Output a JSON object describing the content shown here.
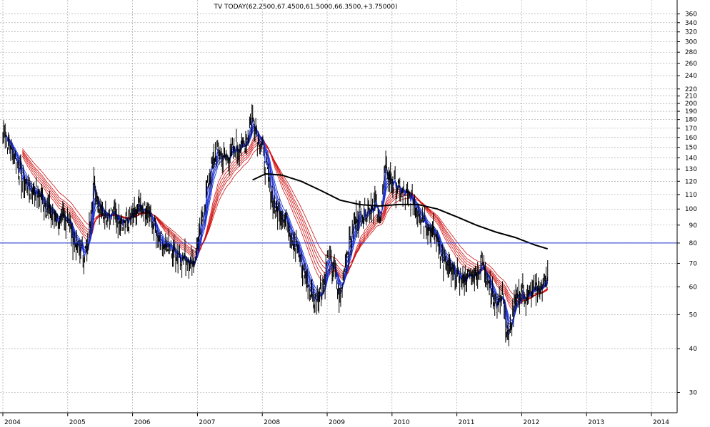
{
  "chart_data": {
    "type": "line",
    "title": "TV TODAY(62.2500,67.4500,61.5000,66.3500,+3.75000)",
    "y_scale": "log",
    "ylim": [
      27,
      380
    ],
    "xlim": [
      2004.0,
      2014.33
    ],
    "grid": true,
    "y_ticks": [
      30,
      40,
      50,
      60,
      70,
      80,
      90,
      100,
      110,
      120,
      130,
      140,
      150,
      160,
      170,
      180,
      190,
      200,
      210,
      220,
      240,
      260,
      280,
      300,
      320,
      340,
      360
    ],
    "x_ticks": [
      "2004",
      "2005",
      "2006",
      "2007",
      "2008",
      "2009",
      "2010",
      "2011",
      "2012",
      "2013",
      "2014"
    ],
    "horizontal_line": 80,
    "price": {
      "x": [
        2004.0,
        2004.03,
        2004.1,
        2004.2,
        2004.3,
        2004.4,
        2004.55,
        2004.7,
        2004.85,
        2005.0,
        2005.1,
        2005.2,
        2005.3,
        2005.4,
        2005.5,
        2005.6,
        2005.75,
        2005.9,
        2006.0,
        2006.1,
        2006.25,
        2006.4,
        2006.55,
        2006.7,
        2006.85,
        2006.95,
        2007.0,
        2007.1,
        2007.2,
        2007.3,
        2007.45,
        2007.6,
        2007.75,
        2007.85,
        2007.9,
        2008.0,
        2008.1,
        2008.2,
        2008.35,
        2008.5,
        2008.65,
        2008.8,
        2008.95,
        2009.0,
        2009.1,
        2009.2,
        2009.3,
        2009.45,
        2009.6,
        2009.75,
        2009.8,
        2009.9,
        2010.0,
        2010.1,
        2010.25,
        2010.4,
        2010.55,
        2010.7,
        2010.8,
        2010.95,
        2011.1,
        2011.25,
        2011.4,
        2011.5,
        2011.6,
        2011.7,
        2011.75,
        2011.8,
        2011.9,
        2012.0,
        2012.1,
        2012.2,
        2012.3,
        2012.4
      ],
      "values": [
        160,
        170,
        150,
        140,
        120,
        115,
        110,
        100,
        92,
        95,
        80,
        76,
        75,
        120,
        102,
        97,
        96,
        92,
        95,
        100,
        96,
        82,
        78,
        74,
        72,
        70,
        80,
        100,
        130,
        145,
        140,
        150,
        155,
        185,
        170,
        150,
        120,
        100,
        95,
        80,
        65,
        55,
        60,
        72,
        68,
        55,
        75,
        95,
        100,
        105,
        90,
        130,
        120,
        112,
        108,
        100,
        90,
        82,
        70,
        65,
        63,
        65,
        70,
        62,
        52,
        58,
        47,
        42,
        55,
        58,
        56,
        60,
        58,
        66
      ]
    },
    "sma_long": {
      "x": [
        2007.85,
        2008.05,
        2008.3,
        2008.6,
        2008.9,
        2009.2,
        2009.5,
        2009.8,
        2010.1,
        2010.4,
        2010.7,
        2011.0,
        2011.3,
        2011.6,
        2011.9,
        2012.2,
        2012.4
      ],
      "values": [
        121,
        126,
        125,
        120,
        113,
        106,
        103,
        102,
        103,
        103,
        100,
        95,
        90,
        86,
        83,
        79,
        77
      ]
    },
    "series": [
      {
        "values": [
          160,
          170,
          150,
          140,
          120,
          115,
          110,
          100,
          92,
          95,
          80,
          76,
          75,
          120,
          102,
          97,
          96,
          92,
          95,
          100,
          96,
          82,
          78,
          74,
          72,
          70,
          80,
          100,
          130,
          145,
          140,
          150,
          155,
          185,
          170,
          150,
          120,
          100,
          95,
          80,
          65,
          55,
          60,
          72,
          68,
          55,
          75,
          95,
          100,
          105,
          90,
          130,
          120,
          112,
          108,
          100,
          90,
          82,
          70,
          65,
          63,
          65,
          70,
          62,
          52,
          58,
          47,
          42,
          55,
          58,
          56,
          60,
          58,
          66
        ]
      }
    ]
  }
}
